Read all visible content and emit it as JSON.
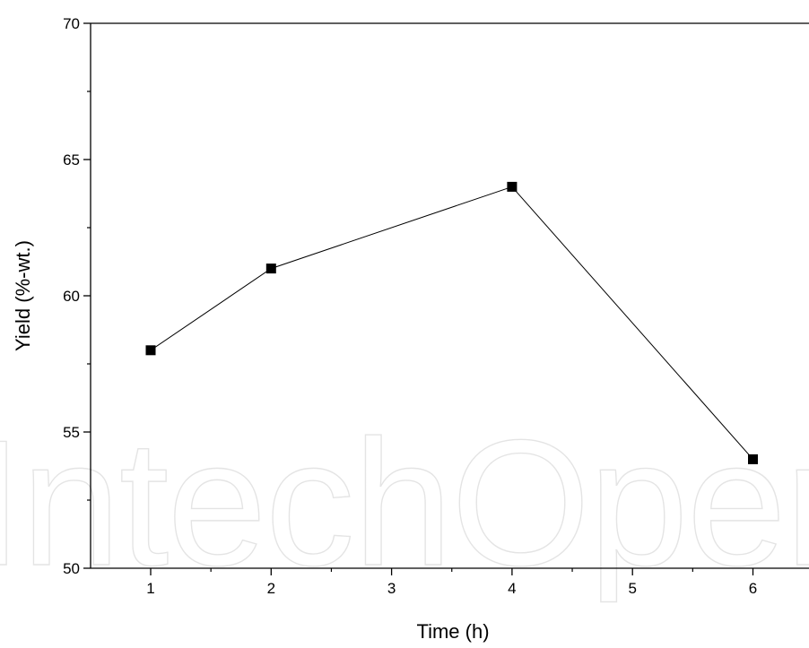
{
  "watermark": "IntechOpen",
  "chart_data": {
    "type": "line",
    "title": "",
    "xlabel": "Time (h)",
    "ylabel": "Yield (%-wt.)",
    "xlim": [
      0.5,
      6.5
    ],
    "ylim": [
      50,
      70
    ],
    "xticks": [
      1,
      2,
      3,
      4,
      5,
      6
    ],
    "yticks": [
      50,
      55,
      60,
      65,
      70
    ],
    "grid": false,
    "legend": "none",
    "series": [
      {
        "x": [
          1,
          2,
          4,
          6
        ],
        "y": [
          58,
          61,
          64,
          54
        ],
        "marker": "square",
        "color": "#000000"
      }
    ]
  }
}
